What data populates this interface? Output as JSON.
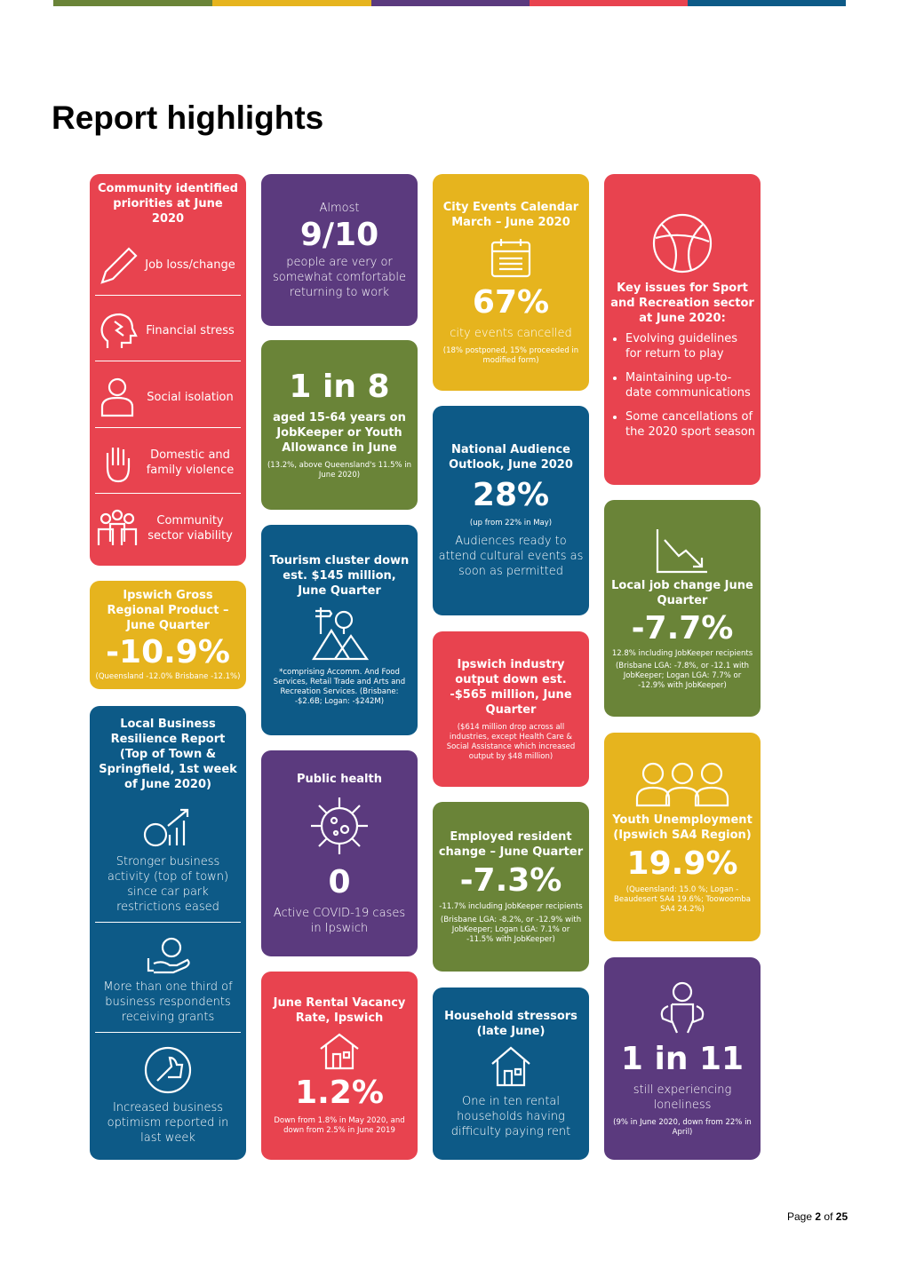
{
  "header": {
    "title": "Report highlights"
  },
  "cards": [
    {
      "title": "Community identified priorities at June 2020",
      "items": [
        "Job loss/change",
        "Financial stress",
        "Social isolation",
        "Domestic and family violence",
        "Community sector viability"
      ]
    },
    {
      "title": "Ipswich Gross Regional Product – June Quarter",
      "figure": "-10.9%",
      "note": "(Queensland -12.0% Brisbane -12.1%)"
    },
    {
      "title": "Local Business Resilience Report (Top of Town & Springfield, 1st week of June 2020)",
      "items": [
        "Stronger business activity (top of town) since car park restrictions eased",
        "More than one third of business respondents receiving grants",
        "Increased business optimism reported in last week"
      ]
    },
    {
      "lead": "Almost",
      "figure": "9/10",
      "text": "people are very or somewhat comfortable returning to work"
    },
    {
      "figure": "1 in 8",
      "text": "aged 15-64 years on JobKeeper or Youth Allowance in June",
      "note": "(13.2%, above Queensland's 11.5% in June 2020)"
    },
    {
      "title": "Tourism cluster down est. $145 million, June Quarter",
      "note": "*comprising Accomm. And Food Services, Retail Trade and Arts and Recreation Services. (Brisbane: -$2.6B; Logan: -$242M)"
    },
    {
      "title": "Public health",
      "figure": "0",
      "text": "Active COVID-19 cases in Ipswich"
    },
    {
      "title": "June Rental Vacancy Rate, Ipswich",
      "figure": "1.2%",
      "note": "Down from 1.8% in May 2020, and down from 2.5% in June 2019"
    },
    {
      "title": "City Events Calendar March – June 2020",
      "figure": "67%",
      "text": "city events cancelled",
      "note": "(18% postponed, 15% proceeded in modified form)"
    },
    {
      "title": "National Audience Outlook, June 2020",
      "figure": "28%",
      "note": "(up from 22% in May)",
      "text": "Audiences ready to attend cultural events as soon as permitted"
    },
    {
      "title": "Ipswich industry output down est. -$565 million, June Quarter",
      "note": "($614 million drop across all industries, except Health Care & Social Assistance which increased output by $48 million)"
    },
    {
      "title": "Employed resident change – June Quarter",
      "figure": "-7.3%",
      "text": "-11.7% including JobKeeper recipients",
      "note": "(Brisbane LGA: -8.2%, or -12.9% with JobKeeper; Logan LGA: 7.1% or -11.5% with JobKeeper)"
    },
    {
      "title": "Household stressors (late June)",
      "text": "One in ten rental households having difficulty paying rent"
    },
    {
      "title": "Key issues for Sport and Recreation sector at June 2020:",
      "items": [
        "Evolving guidelines for return to play",
        "Maintaining up-to-date communications",
        "Some cancellations of the 2020 sport season"
      ]
    },
    {
      "title": "Local job change June Quarter",
      "figure": "-7.7%",
      "text": "12.8% including JobKeeper recipients",
      "note": "(Brisbane LGA: -7.8%, or -12.1 with JobKeeper; Logan LGA: 7.7% or -12.9% with JobKeeper)"
    },
    {
      "title": "Youth Unemployment (Ipswich SA4 Region)",
      "figure": "19.9%",
      "note": "(Queensland: 15.0 %; Logan - Beaudesert SA4 19.6%; Toowoomba SA4 24.2%)"
    },
    {
      "figure": "1 in 11",
      "text": "still experiencing loneliness",
      "note": "(9% in June 2020, down from 22% in April)"
    }
  ],
  "footer": {
    "prefix": "Page",
    "page": "2",
    "separator": "of",
    "total": "25"
  }
}
